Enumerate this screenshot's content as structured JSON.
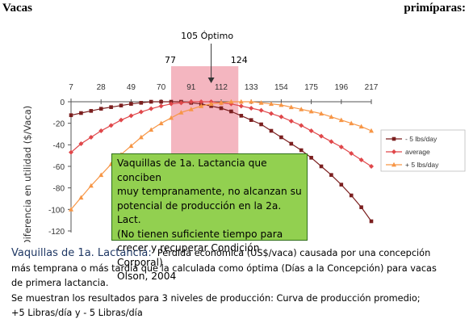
{
  "header": {
    "left": "Vacas",
    "right": "primíparas:"
  },
  "annotations": {
    "optimum": "105 Óptimo",
    "range_low": "77",
    "range_high": "124"
  },
  "callout": {
    "lines": [
      "Vaquillas de 1a. Lactancia que conciben",
      "muy tempranamente, no alcanzan su",
      "potencial de producción en la 2a. Lact.",
      "(No tienen suficiente tiempo para",
      "crecer y recuperar Condición Corporal)",
      "Olson, 2004"
    ]
  },
  "caption": {
    "lead": "Vaquillas de 1a. Lactancia:",
    "lines": [
      "Pérdida económica (US$/vaca) causada por una concepción",
      "más temprana o más tardía que la calculada como óptima (Días a la Concepción) para vacas",
      "de primera lactancia.",
      "Se muestran los resultados para 3 niveles de producción:  Curva de producción promedio;",
      "+5 Libras/día  y  - 5 Libras/día"
    ]
  },
  "colors": {
    "minus5": "#7b1f1f",
    "average": "#e0474a",
    "plus5": "#f79646",
    "highlight": "#f4b6c0",
    "callout_bg": "#92d050",
    "caption_lead": "#1f3864"
  },
  "chart_data": {
    "type": "line",
    "x_tick_labels": [
      "7",
      "28",
      "49",
      "70",
      "91",
      "112",
      "133",
      "154",
      "175",
      "196",
      "217"
    ],
    "x_ticks": [
      7,
      28,
      49,
      70,
      91,
      112,
      133,
      154,
      175,
      196,
      217
    ],
    "ylabel": "Diferencia en utilidad ($/Vaca)",
    "xlabel": "",
    "y_ticks": [
      0,
      -20,
      -40,
      -60,
      -80,
      -100,
      -120
    ],
    "ylim": [
      -120,
      0
    ],
    "xlim": [
      7,
      217
    ],
    "optimum_x": 105,
    "highlight_range": [
      77,
      124
    ],
    "legend_position": "right",
    "series": [
      {
        "name": "- 5 lbs/day",
        "marker": "square",
        "x": [
          7,
          14,
          21,
          28,
          35,
          42,
          49,
          56,
          63,
          70,
          77,
          84,
          91,
          98,
          105,
          112,
          119,
          126,
          133,
          140,
          147,
          154,
          161,
          168,
          175,
          182,
          189,
          196,
          203,
          210,
          217
        ],
        "y": [
          -12.5,
          -10.5,
          -8.5,
          -6.5,
          -5,
          -3.5,
          -2,
          -1,
          0,
          0,
          0,
          0,
          -1,
          -2,
          -4,
          -6,
          -9,
          -13,
          -17,
          -21,
          -27,
          -33,
          -39,
          -45,
          -52,
          -60,
          -68,
          -77,
          -87,
          -98,
          -111
        ]
      },
      {
        "name": "average",
        "marker": "diamond",
        "x": [
          7,
          14,
          21,
          28,
          35,
          42,
          49,
          56,
          63,
          70,
          77,
          84,
          91,
          98,
          105,
          112,
          119,
          126,
          133,
          140,
          147,
          154,
          161,
          168,
          175,
          182,
          189,
          196,
          203,
          210,
          217
        ],
        "y": [
          -47,
          -39,
          -33,
          -27,
          -22,
          -17,
          -13,
          -9.5,
          -6.5,
          -4,
          -2,
          -1,
          0,
          0,
          0,
          -1,
          -2,
          -4,
          -6,
          -8,
          -11,
          -14,
          -18,
          -22,
          -27,
          -32,
          -37,
          -42,
          -48,
          -54,
          -60
        ]
      },
      {
        "name": "+ 5 lbs/day",
        "marker": "triangle",
        "x": [
          7,
          14,
          21,
          28,
          35,
          42,
          49,
          56,
          63,
          70,
          77,
          84,
          91,
          98,
          105,
          112,
          119,
          126,
          133,
          140,
          147,
          154,
          161,
          168,
          175,
          182,
          189,
          196,
          203,
          210,
          217
        ],
        "y": [
          -100,
          -89,
          -78,
          -68,
          -58,
          -49,
          -41,
          -33,
          -26,
          -20,
          -15,
          -10,
          -7,
          -4,
          -2,
          -1,
          0,
          0,
          0,
          -1,
          -2,
          -3,
          -5,
          -7,
          -9,
          -11,
          -14,
          -17,
          -20,
          -23,
          -27
        ]
      }
    ]
  }
}
